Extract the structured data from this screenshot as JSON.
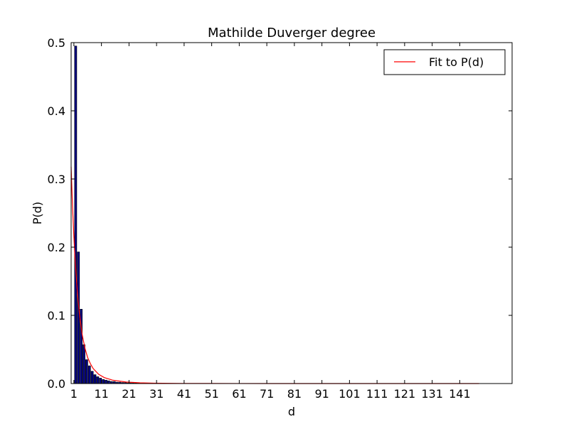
{
  "chart_data": {
    "type": "bar",
    "title": "Mathilde Duverger degree",
    "xlabel": "d",
    "ylabel": "P(d)",
    "xlim": [
      0,
      160
    ],
    "ylim": [
      0,
      0.5
    ],
    "xticks": [
      1,
      11,
      21,
      31,
      41,
      51,
      61,
      71,
      81,
      91,
      101,
      111,
      121,
      131,
      141
    ],
    "yticks": [
      "0.0",
      "0.1",
      "0.2",
      "0.3",
      "0.4",
      "0.5"
    ],
    "bar_color": "#00007f",
    "bars": {
      "x": [
        1,
        2,
        3,
        4,
        5,
        6,
        7,
        8,
        9,
        10,
        11,
        12,
        13,
        14,
        15,
        16,
        17,
        18,
        19,
        20,
        21,
        22,
        23,
        24,
        25
      ],
      "values": [
        0.495,
        0.193,
        0.109,
        0.057,
        0.035,
        0.026,
        0.018,
        0.013,
        0.01,
        0.008,
        0.006,
        0.005,
        0.004,
        0.003,
        0.003,
        0.002,
        0.002,
        0.0015,
        0.0015,
        0.001,
        0.001,
        0.001,
        0.0008,
        0.0008,
        0.0006
      ]
    },
    "series": [
      {
        "name": "Fit to P(d)",
        "color": "#ff0000",
        "x": [
          0,
          0.5,
          1,
          1.5,
          2,
          2.5,
          3,
          4,
          5,
          6,
          7,
          8,
          10,
          12,
          15,
          20,
          25,
          30,
          40,
          50,
          60,
          80,
          100,
          120,
          148
        ],
        "y": [
          0.318,
          0.26,
          0.215,
          0.178,
          0.148,
          0.123,
          0.103,
          0.072,
          0.052,
          0.038,
          0.029,
          0.022,
          0.0135,
          0.0088,
          0.005,
          0.0022,
          0.0011,
          0.0006,
          0.0002,
          0.0001,
          5e-05,
          2e-05,
          1e-05,
          5e-06,
          2e-06
        ]
      }
    ],
    "legend": {
      "position": "top-right",
      "labels": [
        "Fit to P(d)"
      ]
    },
    "grid": false
  }
}
